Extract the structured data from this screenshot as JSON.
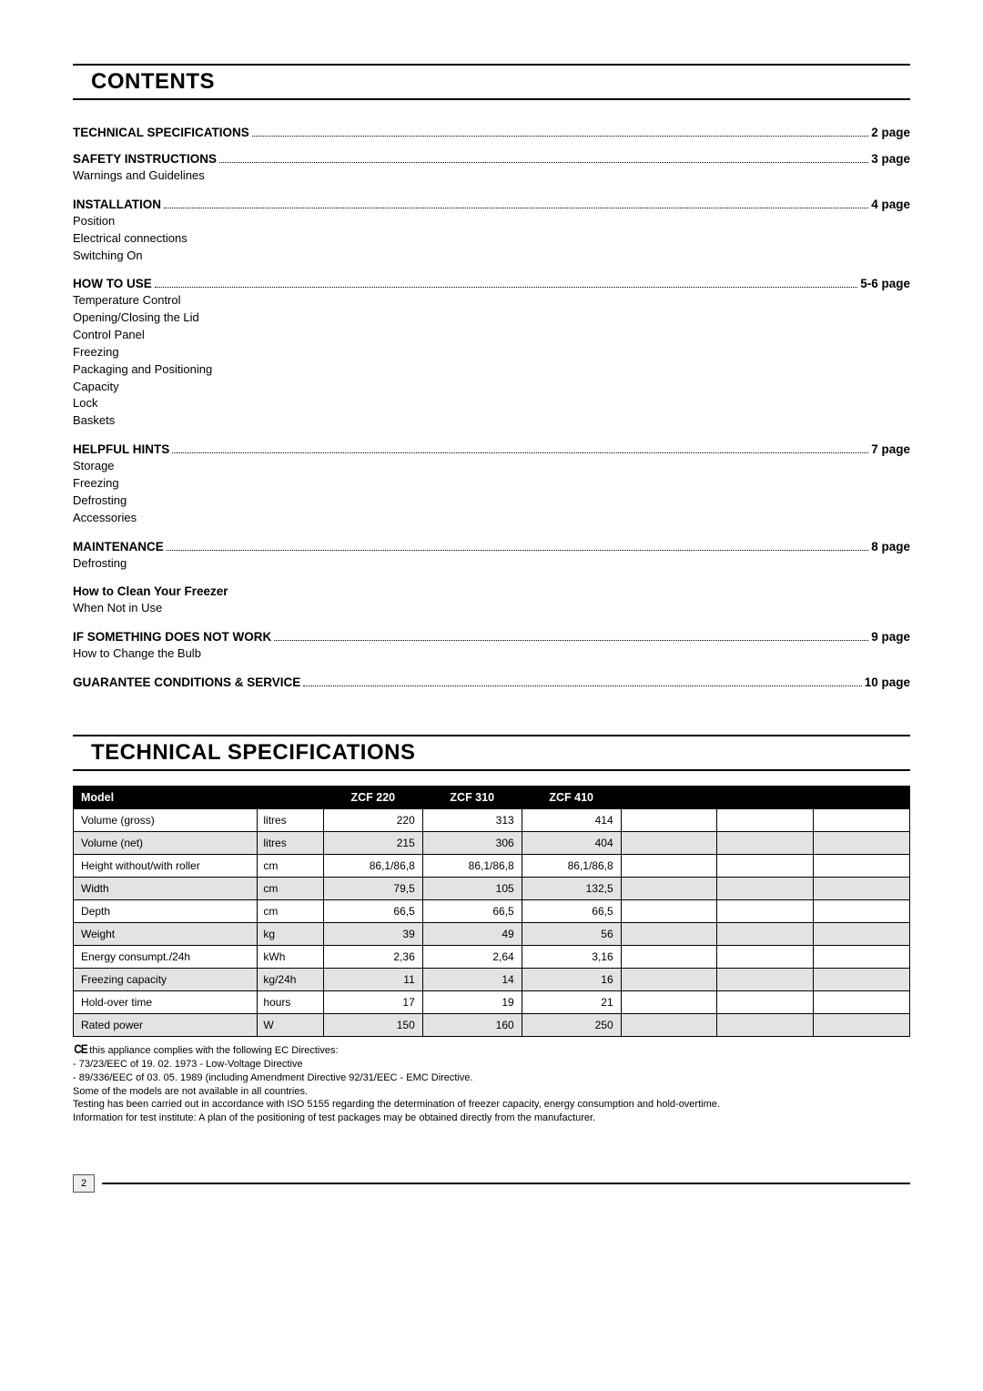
{
  "contents_heading": "CONTENTS",
  "tech_heading": "TECHNICAL SPECIFICATIONS",
  "toc": [
    {
      "label": "TECHNICAL SPECIFICATIONS",
      "page": "2 page",
      "subs": []
    },
    {
      "label": "SAFETY INSTRUCTIONS",
      "page": "3 page",
      "subs": [
        "Warnings and Guidelines"
      ]
    },
    {
      "label": "INSTALLATION",
      "page": "4 page",
      "subs": [
        "Position",
        "Electrical connections",
        "Switching On"
      ]
    },
    {
      "label": "HOW TO USE",
      "page": "5-6 page",
      "subs": [
        "Temperature Control",
        "Opening/Closing the Lid",
        "Control Panel",
        "Freezing",
        "Packaging and Positioning",
        "Capacity",
        "Lock",
        "Baskets"
      ]
    },
    {
      "label": "HELPFUL HINTS",
      "page": "7 page",
      "subs": [
        "Storage",
        "Freezing",
        "Defrosting",
        "Accessories"
      ]
    },
    {
      "label": "MAINTENANCE",
      "page": "8 page",
      "subs": [
        "Defrosting"
      ]
    },
    {
      "label_plain": "How to Clean Your Freezer",
      "subs": [
        "When Not in Use"
      ]
    },
    {
      "label": "IF SOMETHING DOES NOT WORK",
      "page": "9 page",
      "subs": [
        "How to Change the Bulb"
      ]
    },
    {
      "label": "GUARANTEE CONDITIONS & SERVICE",
      "page": "10 page",
      "subs": []
    }
  ],
  "table": {
    "header": {
      "model": "Model",
      "c1": "ZCF 220",
      "c2": "ZCF 310",
      "c3": "ZCF 410"
    },
    "rows": [
      {
        "label": "Volume (gross)",
        "unit": "litres",
        "v1": "220",
        "v2": "313",
        "v3": "414",
        "alt": false
      },
      {
        "label": "Volume (net)",
        "unit": "litres",
        "v1": "215",
        "v2": "306",
        "v3": "404",
        "alt": true
      },
      {
        "label": "Height without/with roller",
        "unit": "cm",
        "v1": "86,1/86,8",
        "v2": "86,1/86,8",
        "v3": "86,1/86,8",
        "alt": false
      },
      {
        "label": "Width",
        "unit": "cm",
        "v1": "79,5",
        "v2": "105",
        "v3": "132,5",
        "alt": true
      },
      {
        "label": "Depth",
        "unit": "cm",
        "v1": "66,5",
        "v2": "66,5",
        "v3": "66,5",
        "alt": false
      },
      {
        "label": "Weight",
        "unit": "kg",
        "v1": "39",
        "v2": "49",
        "v3": "56",
        "alt": true
      },
      {
        "label": "Energy consumpt./24h",
        "unit": "kWh",
        "v1": "2,36",
        "v2": "2,64",
        "v3": "3,16",
        "alt": false
      },
      {
        "label": "Freezing capacity",
        "unit": "kg/24h",
        "v1": "11",
        "v2": "14",
        "v3": "16",
        "alt": true
      },
      {
        "label": "Hold-over time",
        "unit": "hours",
        "v1": "17",
        "v2": "19",
        "v3": "21",
        "alt": false
      },
      {
        "label": "Rated power",
        "unit": "W",
        "v1": "150",
        "v2": "160",
        "v3": "250",
        "alt": true
      }
    ]
  },
  "footnotes": {
    "l1": "this appliance complies with the following EC Directives:",
    "l2": "- 73/23/EEC of 19. 02. 1973 - Low-Voltage Directive",
    "l3": "- 89/336/EEC of 03. 05. 1989 (including Amendment Directive 92/31/EEC - EMC Directive.",
    "l4": "Some of the models are not available in all countries.",
    "l5": "Testing has been carried out in accordance with ISO 5155 regarding the determination of freezer capacity, energy consumption and hold-overtime.",
    "l6": "Information for test institute: A plan of the positioning of test packages may be obtained directly from the manufacturer."
  },
  "page_number": "2"
}
